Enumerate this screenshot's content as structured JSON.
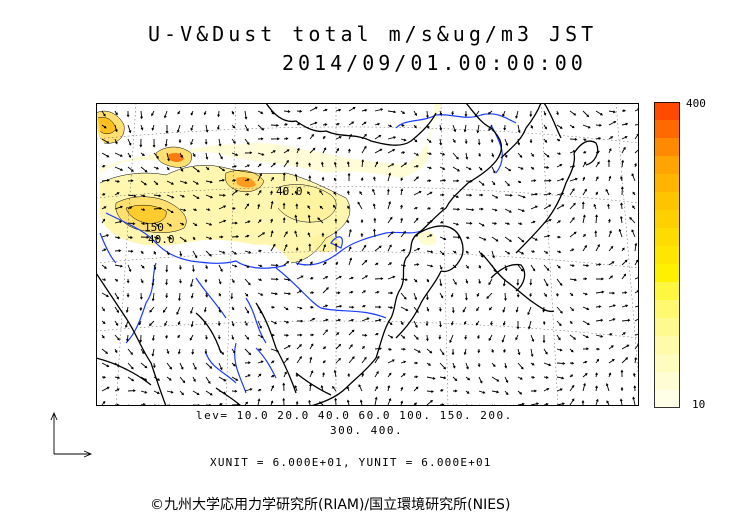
{
  "title": {
    "line1": "U-V&Dust total m/s&ug/m3 JST",
    "line2": "2014/09/01.00:00:00"
  },
  "map": {
    "contour_labels": [
      "150",
      "40.0",
      "40.0"
    ],
    "colors": {
      "coast": "#000000",
      "river": "#1a3cff",
      "grid": "#555555",
      "frame": "#000000"
    }
  },
  "colorbar": {
    "max_label": "400",
    "min_label": "10",
    "colors": [
      "#ff4a00",
      "#ff6a00",
      "#ff8a00",
      "#ffa400",
      "#ffb400",
      "#ffc400",
      "#ffd000",
      "#ffdc00",
      "#ffe600",
      "#fff000",
      "#fff640",
      "#fff870",
      "#fffa90",
      "#fffbaa",
      "#fffcc0",
      "#fffdd4",
      "#fffee6"
    ]
  },
  "levels": {
    "line1": "lev= 10.0 20.0 40.0 60.0 100. 150. 200.",
    "line2": "300. 400."
  },
  "units": "XUNIT = 6.000E+01, YUNIT = 6.000E+01",
  "copyright": "©九州大学応用力学研究所(RIAM)/国立環境研究所(NIES)"
}
